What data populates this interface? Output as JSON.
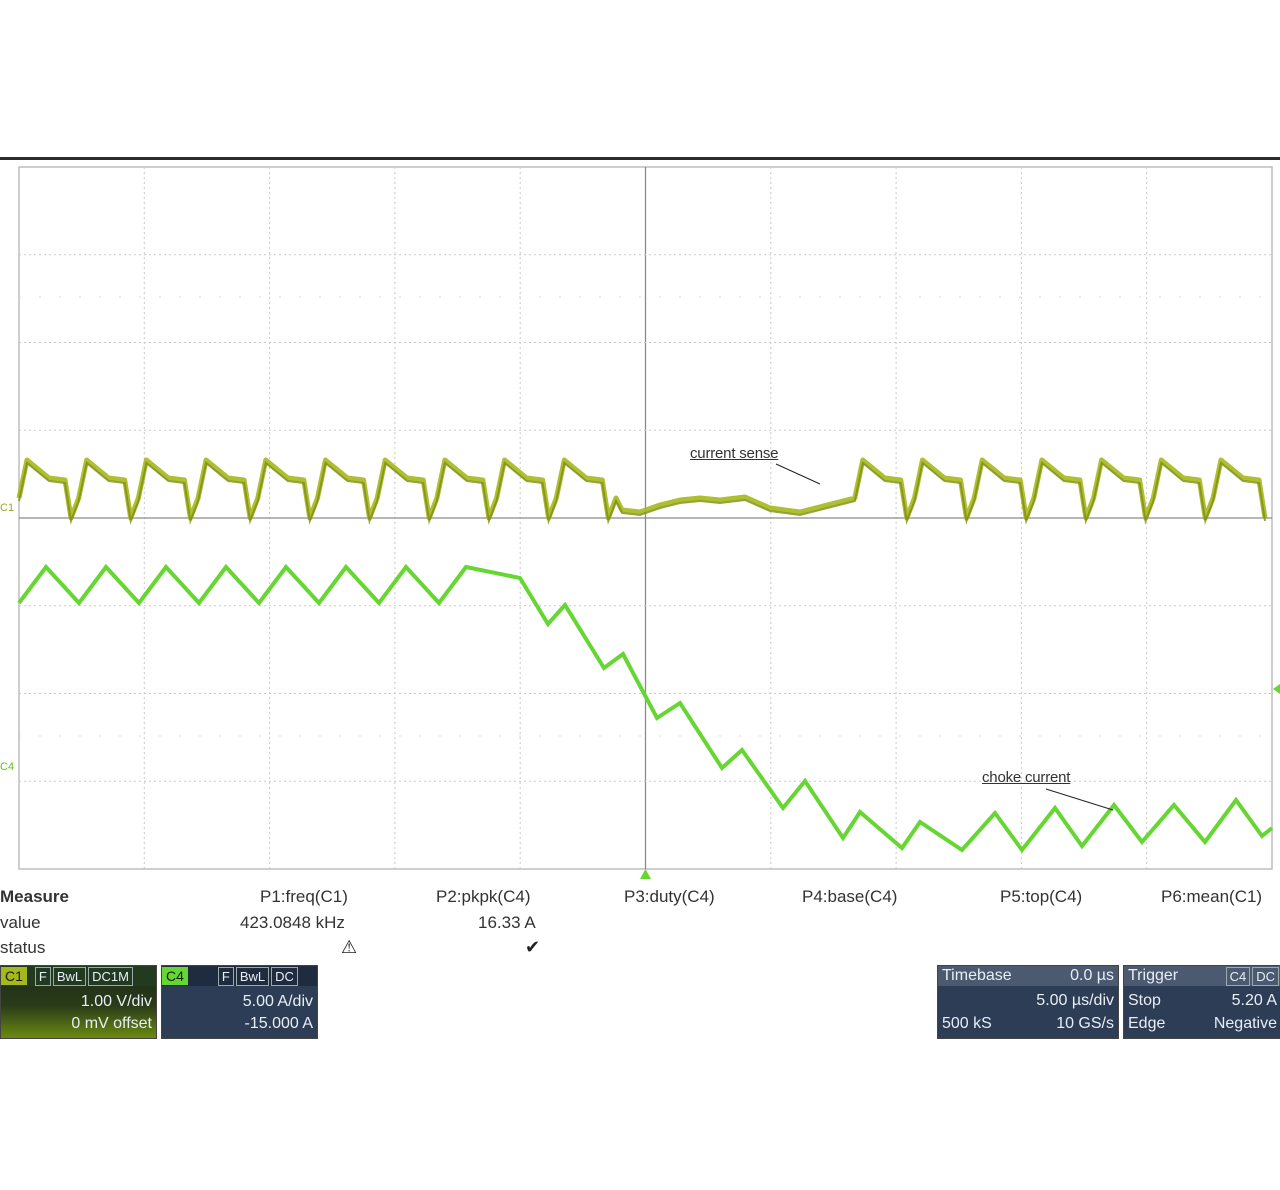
{
  "channels": {
    "c1_marker": "C1",
    "c4_marker": "C4",
    "c1_color": "#a5b81c",
    "c4_color": "#66d633"
  },
  "annotations": {
    "current_sense": "current sense",
    "choke_current": "choke current"
  },
  "measure": {
    "title": "Measure",
    "value_label": "value",
    "status_label": "status",
    "columns": [
      {
        "header": "P1:freq(C1)",
        "value": "423.0848 kHz",
        "status": "⚠"
      },
      {
        "header": "P2:pkpk(C4)",
        "value": "16.33 A",
        "status": "✔"
      },
      {
        "header": "P3:duty(C4)",
        "value": "",
        "status": ""
      },
      {
        "header": "P4:base(C4)",
        "value": "",
        "status": ""
      },
      {
        "header": "P5:top(C4)",
        "value": "",
        "status": ""
      },
      {
        "header": "P6:mean(C1)",
        "value": "",
        "status": ""
      }
    ]
  },
  "c1_panel": {
    "badge": "C1",
    "tags": [
      "F",
      "BwL",
      "DC1M"
    ],
    "scale": "1.00 V/div",
    "offset": "0 mV offset"
  },
  "c4_panel": {
    "badge": "C4",
    "tags": [
      "F",
      "BwL",
      "DC"
    ],
    "scale": "5.00 A/div",
    "offset": "-15.000 A"
  },
  "timebase_panel": {
    "title": "Timebase",
    "delay": "0.0 µs",
    "scale": "5.00 µs/div",
    "samples": "500 kS",
    "rate": "10 GS/s"
  },
  "trigger_panel": {
    "title": "Trigger",
    "source_badge": "C4",
    "coupling": "DC",
    "mode": "Stop",
    "level": "5.20 A",
    "type": "Edge",
    "slope": "Negative"
  }
}
